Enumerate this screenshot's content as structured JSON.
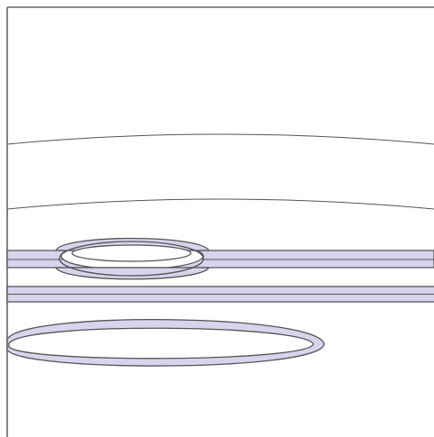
{
  "colors": {
    "background": "#ffffff",
    "fill": "#d8d4ec",
    "stroke": "#555555",
    "frame": "#666666"
  }
}
